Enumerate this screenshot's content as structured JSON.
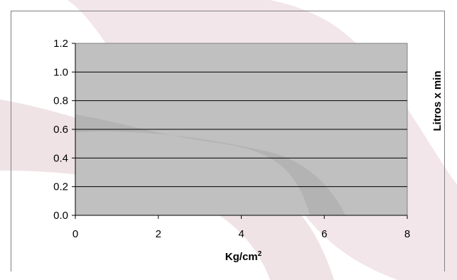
{
  "chart_data": {
    "type": "line",
    "title": "",
    "xlabel": "Kg/cm",
    "xlabel_superscript": "2",
    "ylabel": "Litros x min",
    "xlim": [
      0,
      8
    ],
    "ylim": [
      0,
      1.2
    ],
    "x_ticks": [
      "0",
      "2",
      "4",
      "6",
      "8"
    ],
    "y_ticks": [
      "0.0",
      "0.2",
      "0.4",
      "0.6",
      "0.8",
      "1.0",
      "1.2"
    ],
    "grid": true,
    "plot_background": "#c0c0c0",
    "grid_color": "#000000",
    "series": []
  }
}
